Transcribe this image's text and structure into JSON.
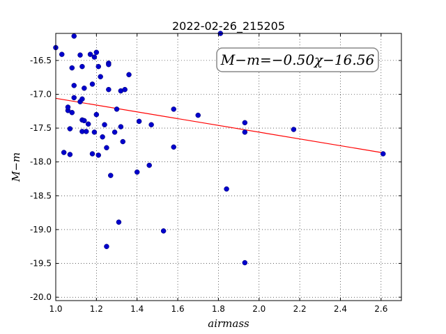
{
  "chart_data": {
    "type": "scatter",
    "title": "2022-02-26_215205",
    "xlabel": "airmass",
    "ylabel": "M−m",
    "xlim": [
      1.0,
      2.7
    ],
    "ylim": [
      -20.05,
      -16.1
    ],
    "y_inverted": true,
    "grid": true,
    "xticks": [
      1.0,
      1.2,
      1.4,
      1.6,
      1.8,
      2.0,
      2.2,
      2.4,
      2.6
    ],
    "xtick_labels": [
      "1.0",
      "1.2",
      "1.4",
      "1.6",
      "1.8",
      "2.0",
      "2.2",
      "2.4",
      "2.6"
    ],
    "yticks": [
      -16.5,
      -17.0,
      -17.5,
      -18.0,
      -18.5,
      -19.0,
      -19.5,
      -20.0
    ],
    "ytick_labels": [
      "-16.5",
      "-17.0",
      "-17.5",
      "-18.0",
      "-18.5",
      "-19.0",
      "-19.5",
      "-20.0"
    ],
    "annotation": "M−m=−0.50χ−16.56",
    "fit": {
      "slope": -0.5,
      "intercept": -16.56,
      "color": "#ff0000",
      "x_range": [
        1.0,
        2.6
      ]
    },
    "point_color": "#0000cc",
    "points": [
      [
        1.0,
        -16.31
      ],
      [
        1.03,
        -16.41
      ],
      [
        1.04,
        -17.86
      ],
      [
        1.06,
        -17.24
      ],
      [
        1.06,
        -17.19
      ],
      [
        1.07,
        -17.51
      ],
      [
        1.07,
        -17.89
      ],
      [
        1.08,
        -16.61
      ],
      [
        1.08,
        -17.27
      ],
      [
        1.09,
        -16.14
      ],
      [
        1.09,
        -16.87
      ],
      [
        1.09,
        -17.05
      ],
      [
        1.12,
        -16.42
      ],
      [
        1.12,
        -17.11
      ],
      [
        1.13,
        -16.59
      ],
      [
        1.13,
        -17.07
      ],
      [
        1.13,
        -17.38
      ],
      [
        1.13,
        -17.55
      ],
      [
        1.14,
        -16.91
      ],
      [
        1.14,
        -17.39
      ],
      [
        1.15,
        -17.55
      ],
      [
        1.16,
        -17.44
      ],
      [
        1.17,
        -16.41
      ],
      [
        1.18,
        -16.85
      ],
      [
        1.18,
        -17.88
      ],
      [
        1.19,
        -17.56
      ],
      [
        1.19,
        -16.45
      ],
      [
        1.2,
        -16.38
      ],
      [
        1.2,
        -17.3
      ],
      [
        1.21,
        -17.9
      ],
      [
        1.21,
        -16.59
      ],
      [
        1.22,
        -16.74
      ],
      [
        1.23,
        -17.63
      ],
      [
        1.24,
        -17.45
      ],
      [
        1.25,
        -17.79
      ],
      [
        1.25,
        -19.25
      ],
      [
        1.26,
        -16.54
      ],
      [
        1.26,
        -16.56
      ],
      [
        1.26,
        -16.93
      ],
      [
        1.27,
        -18.2
      ],
      [
        1.29,
        -17.56
      ],
      [
        1.3,
        -17.22
      ],
      [
        1.31,
        -18.89
      ],
      [
        1.32,
        -16.95
      ],
      [
        1.32,
        -17.48
      ],
      [
        1.33,
        -17.7
      ],
      [
        1.34,
        -16.93
      ],
      [
        1.36,
        -16.71
      ],
      [
        1.4,
        -18.15
      ],
      [
        1.41,
        -17.4
      ],
      [
        1.46,
        -18.05
      ],
      [
        1.47,
        -17.45
      ],
      [
        1.53,
        -19.02
      ],
      [
        1.58,
        -17.22
      ],
      [
        1.58,
        -17.78
      ],
      [
        1.7,
        -17.31
      ],
      [
        1.81,
        -16.1
      ],
      [
        1.84,
        -18.4
      ],
      [
        1.93,
        -17.42
      ],
      [
        1.93,
        -17.56
      ],
      [
        1.93,
        -19.49
      ],
      [
        2.17,
        -17.52
      ],
      [
        2.61,
        -17.88
      ]
    ]
  }
}
